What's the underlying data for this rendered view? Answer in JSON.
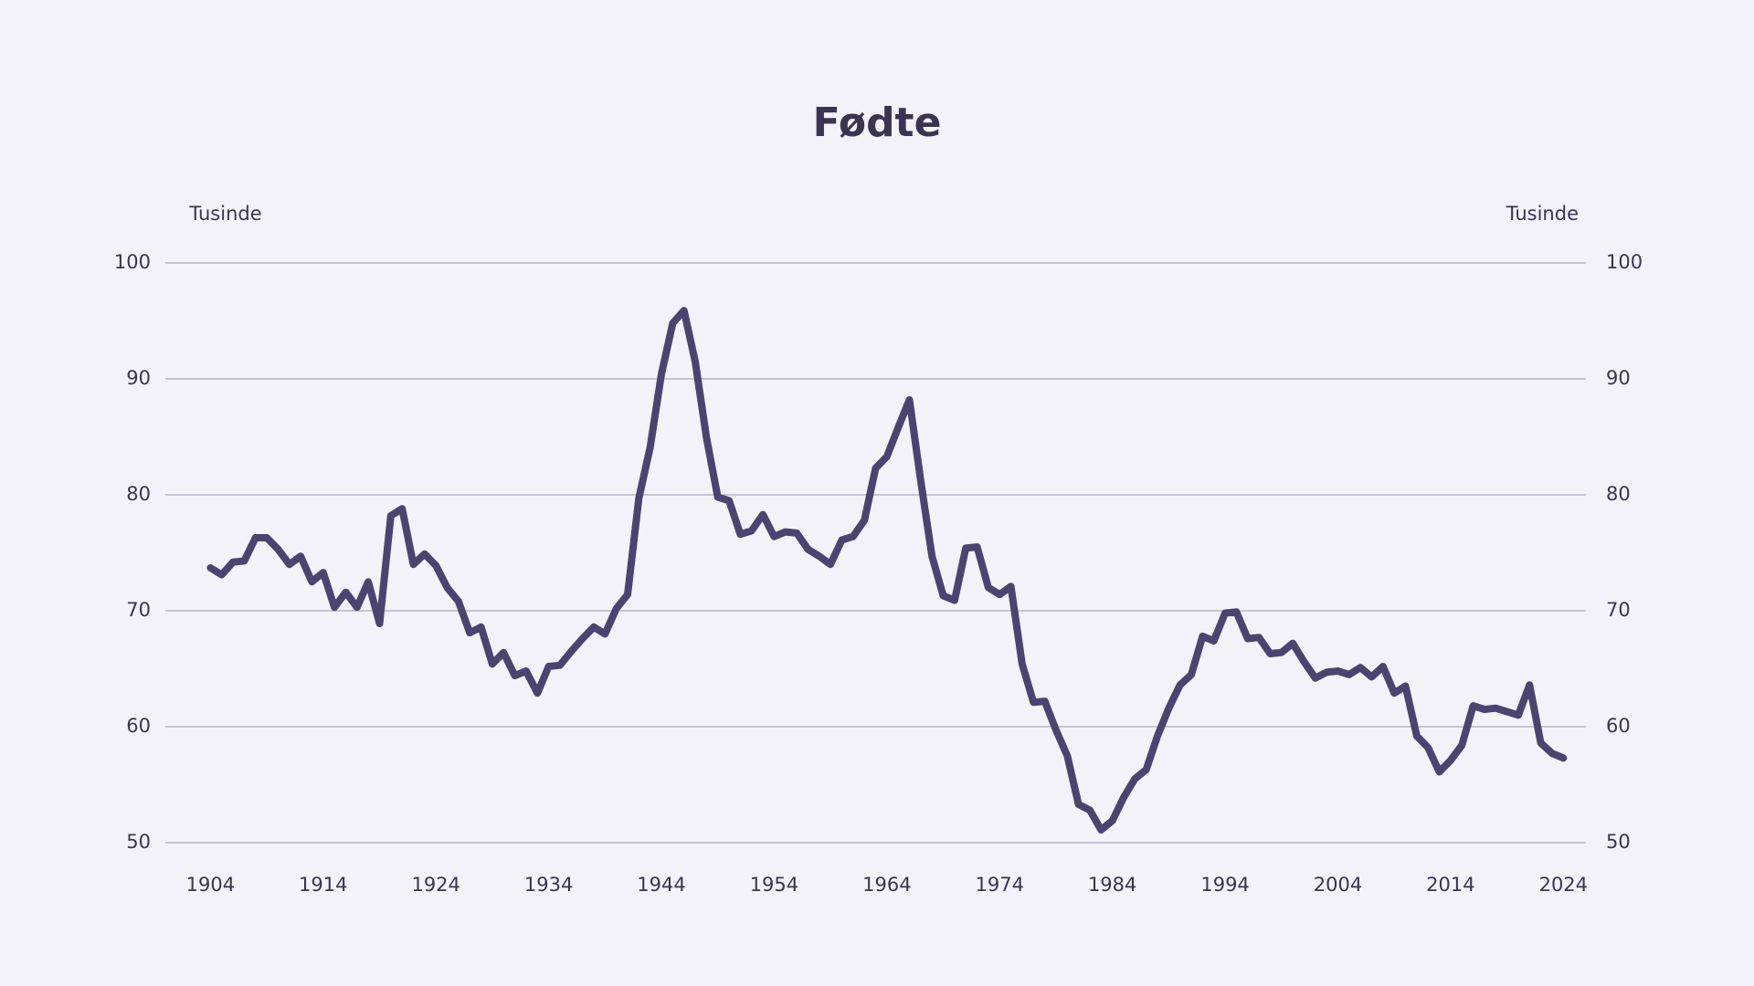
{
  "chart_data": {
    "type": "line",
    "title": "Fødte",
    "y_label": "Tusinde",
    "y2_label": "Tusinde",
    "x": [
      1904,
      1905,
      1906,
      1907,
      1908,
      1909,
      1910,
      1911,
      1912,
      1913,
      1914,
      1915,
      1916,
      1917,
      1918,
      1919,
      1920,
      1921,
      1922,
      1923,
      1924,
      1925,
      1926,
      1927,
      1928,
      1929,
      1930,
      1931,
      1932,
      1933,
      1934,
      1935,
      1936,
      1937,
      1938,
      1939,
      1940,
      1941,
      1942,
      1943,
      1944,
      1945,
      1946,
      1947,
      1948,
      1949,
      1950,
      1951,
      1952,
      1953,
      1954,
      1955,
      1956,
      1957,
      1958,
      1959,
      1960,
      1961,
      1962,
      1963,
      1964,
      1965,
      1966,
      1967,
      1968,
      1969,
      1970,
      1971,
      1972,
      1973,
      1974,
      1975,
      1976,
      1977,
      1978,
      1979,
      1980,
      1981,
      1982,
      1983,
      1984,
      1985,
      1986,
      1987,
      1988,
      1989,
      1990,
      1991,
      1992,
      1993,
      1994,
      1995,
      1996,
      1997,
      1998,
      1999,
      2000,
      2001,
      2002,
      2003,
      2004,
      2005,
      2006,
      2007,
      2008,
      2009,
      2010,
      2011,
      2012,
      2013,
      2014,
      2015,
      2016,
      2017,
      2018,
      2019,
      2020,
      2021,
      2022,
      2023,
      2024
    ],
    "series": [
      {
        "name": "Fødte",
        "color": "#4b4470",
        "values": [
          73.7,
          73.1,
          74.2,
          74.3,
          76.3,
          76.3,
          75.3,
          74.0,
          74.7,
          72.5,
          73.3,
          70.3,
          71.6,
          70.3,
          72.5,
          68.9,
          78.2,
          78.8,
          74.0,
          74.9,
          73.9,
          72.0,
          70.8,
          68.1,
          68.6,
          65.4,
          66.4,
          64.4,
          64.8,
          62.9,
          65.2,
          65.3,
          66.5,
          67.6,
          68.6,
          68.0,
          70.2,
          71.4,
          79.7,
          84.1,
          90.4,
          94.8,
          95.9,
          91.5,
          84.9,
          79.8,
          79.5,
          76.6,
          76.9,
          78.3,
          76.4,
          76.8,
          76.7,
          75.3,
          74.7,
          74.0,
          76.1,
          76.4,
          77.8,
          82.3,
          83.3,
          85.8,
          88.2,
          81.2,
          74.7,
          71.3,
          70.9,
          75.4,
          75.5,
          72.0,
          71.4,
          72.1,
          65.4,
          62.1,
          62.2,
          59.7,
          57.5,
          53.3,
          52.8,
          51.1,
          51.9,
          53.9,
          55.5,
          56.3,
          59.2,
          61.6,
          63.6,
          64.5,
          67.8,
          67.4,
          69.8,
          69.9,
          67.6,
          67.7,
          66.3,
          66.4,
          67.2,
          65.6,
          64.2,
          64.7,
          64.8,
          64.5,
          65.1,
          64.3,
          65.2,
          62.9,
          63.5,
          59.2,
          58.2,
          56.1,
          57.1,
          58.4,
          61.8,
          61.5,
          61.6,
          61.3,
          61.0,
          63.6,
          58.6,
          57.7,
          57.3
        ]
      }
    ],
    "xlim": [
      1900,
      2026
    ],
    "xticks": [
      1904,
      1914,
      1924,
      1934,
      1944,
      1954,
      1964,
      1974,
      1984,
      1994,
      2004,
      2014,
      2024
    ],
    "ylim": [
      50,
      100
    ],
    "yticks": [
      50,
      60,
      70,
      80,
      90,
      100
    ],
    "y2lim": [
      50,
      100
    ],
    "y2ticks": [
      50,
      60,
      70,
      80,
      90,
      100
    ],
    "grid": true
  }
}
